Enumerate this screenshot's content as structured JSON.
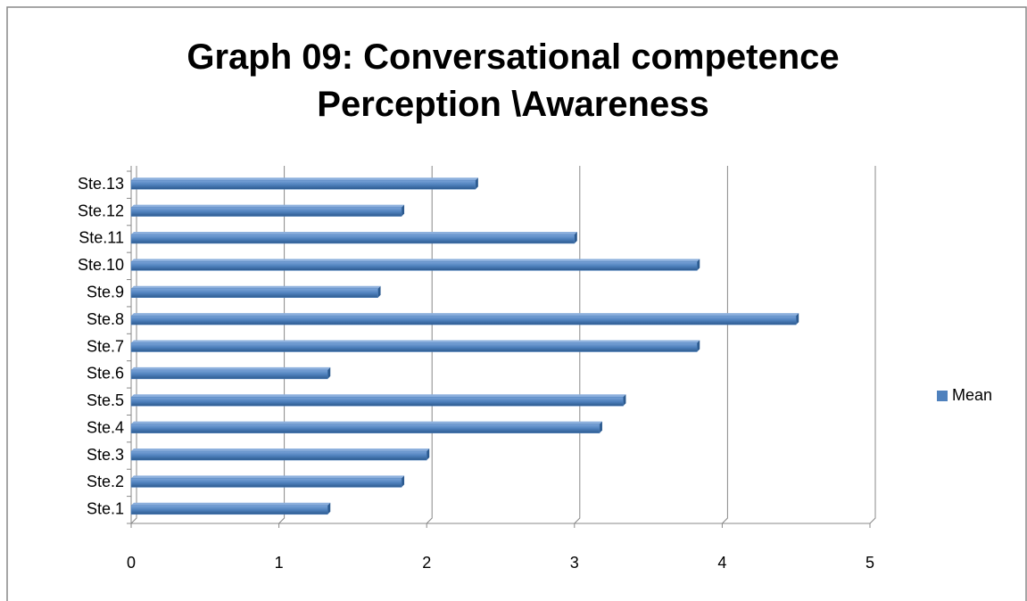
{
  "chart_data": {
    "type": "bar",
    "orientation": "horizontal",
    "title": "Graph 09: Conversational competence Perception \\Awareness",
    "categories": [
      "Ste.1",
      "Ste.2",
      "Ste.3",
      "Ste.4",
      "Ste.5",
      "Ste.6",
      "Ste.7",
      "Ste.8",
      "Ste.9",
      "Ste.10",
      "Ste.11",
      "Ste.12",
      "Ste.13"
    ],
    "series": [
      {
        "name": "Mean",
        "color": "#4f81bd",
        "values": [
          1.33,
          1.83,
          2,
          3.17,
          3.33,
          1.33,
          3.83,
          4.5,
          1.67,
          3.83,
          3,
          1.83,
          2.33
        ]
      }
    ],
    "xlim": [
      0,
      5
    ],
    "xticks": [
      0,
      1,
      2,
      3,
      4,
      5
    ],
    "grid": true,
    "legend": "right"
  }
}
